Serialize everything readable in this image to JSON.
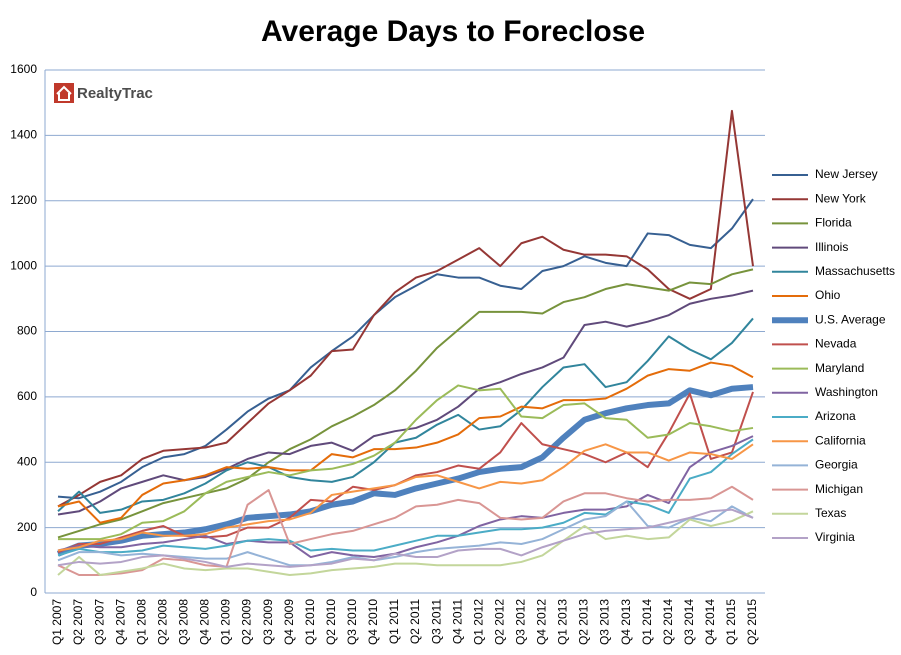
{
  "chart_data": {
    "type": "line",
    "title": "Average Days to Foreclose",
    "logo": "RealtyTrac",
    "categories": [
      "Q1 2007",
      "Q2 2007",
      "Q3 2007",
      "Q4 2007",
      "Q1 2008",
      "Q2 2008",
      "Q3 2008",
      "Q4 2008",
      "Q1 2009",
      "Q2 2009",
      "Q3 2009",
      "Q4 2009",
      "Q1 2010",
      "Q2 2010",
      "Q3 2010",
      "Q4 2010",
      "Q1 2011",
      "Q2 2011",
      "Q3 2011",
      "Q4 2011",
      "Q1 2012",
      "Q2 2012",
      "Q3 2012",
      "Q4 2012",
      "Q1 2013",
      "Q2 2013",
      "Q3 2013",
      "Q4 2013",
      "Q1 2014",
      "Q2 2014",
      "Q3 2014",
      "Q4 2014",
      "Q1 2015",
      "Q2 2015"
    ],
    "ylim": [
      0,
      1600
    ],
    "yticks": [
      0,
      200,
      400,
      600,
      800,
      1000,
      1200,
      1400,
      1600
    ],
    "grid": true,
    "legend": "right",
    "series": [
      {
        "name": "New Jersey",
        "color": "#376092",
        "values": [
          295,
          290,
          310,
          340,
          385,
          415,
          425,
          450,
          500,
          555,
          595,
          620,
          690,
          740,
          785,
          850,
          905,
          940,
          975,
          965,
          965,
          940,
          930,
          985,
          1000,
          1030,
          1010,
          1000,
          1100,
          1095,
          1065,
          1055,
          1115,
          1205
        ]
      },
      {
        "name": "New York",
        "color": "#953735",
        "values": [
          265,
          300,
          340,
          360,
          410,
          435,
          440,
          445,
          460,
          520,
          580,
          620,
          665,
          740,
          745,
          850,
          920,
          965,
          985,
          1020,
          1055,
          1000,
          1070,
          1090,
          1050,
          1035,
          1035,
          1030,
          990,
          930,
          900,
          930,
          1475,
          1000
        ]
      },
      {
        "name": "Florida",
        "color": "#77933c",
        "values": [
          170,
          190,
          210,
          225,
          250,
          275,
          290,
          305,
          320,
          350,
          400,
          440,
          470,
          510,
          540,
          575,
          620,
          680,
          750,
          805,
          860,
          860,
          860,
          855,
          890,
          905,
          930,
          945,
          935,
          925,
          950,
          945,
          975,
          990
        ]
      },
      {
        "name": "Illinois",
        "color": "#604a7b",
        "values": [
          240,
          250,
          280,
          320,
          340,
          360,
          345,
          355,
          380,
          410,
          430,
          425,
          450,
          460,
          435,
          480,
          495,
          505,
          530,
          570,
          625,
          645,
          670,
          690,
          720,
          820,
          830,
          815,
          830,
          850,
          885,
          900,
          910,
          925
        ]
      },
      {
        "name": "Massachusetts",
        "color": "#31859c",
        "values": [
          250,
          310,
          245,
          255,
          280,
          285,
          305,
          335,
          375,
          400,
          385,
          355,
          345,
          340,
          355,
          400,
          460,
          475,
          515,
          545,
          500,
          510,
          560,
          630,
          690,
          700,
          630,
          645,
          710,
          785,
          745,
          715,
          765,
          840
        ]
      },
      {
        "name": "Ohio",
        "color": "#e46c0a",
        "values": [
          265,
          280,
          215,
          230,
          300,
          335,
          345,
          360,
          385,
          380,
          385,
          375,
          375,
          425,
          415,
          440,
          440,
          445,
          460,
          485,
          535,
          540,
          570,
          565,
          590,
          590,
          595,
          625,
          665,
          685,
          680,
          705,
          695,
          660
        ]
      },
      {
        "name": "U.S. Average",
        "color": "#4f81bd",
        "line_width": 6,
        "values": [
          120,
          145,
          150,
          160,
          175,
          180,
          185,
          195,
          210,
          230,
          235,
          240,
          250,
          270,
          280,
          305,
          300,
          320,
          335,
          350,
          370,
          380,
          385,
          415,
          475,
          530,
          550,
          565,
          575,
          580,
          620,
          605,
          625,
          630
        ]
      },
      {
        "name": "Nevada",
        "color": "#c0504d",
        "values": [
          125,
          150,
          150,
          170,
          190,
          205,
          175,
          170,
          175,
          200,
          200,
          230,
          285,
          280,
          325,
          315,
          330,
          360,
          370,
          390,
          380,
          430,
          520,
          455,
          440,
          425,
          400,
          430,
          385,
          490,
          610,
          410,
          430,
          615
        ]
      },
      {
        "name": "Maryland",
        "color": "#9bbb59",
        "values": [
          165,
          165,
          165,
          180,
          215,
          220,
          250,
          305,
          340,
          355,
          370,
          360,
          375,
          380,
          395,
          420,
          460,
          530,
          590,
          635,
          620,
          625,
          540,
          535,
          575,
          580,
          535,
          530,
          475,
          485,
          520,
          510,
          495,
          505
        ]
      },
      {
        "name": "Washington",
        "color": "#8064a2",
        "values": [
          130,
          145,
          140,
          140,
          150,
          155,
          165,
          175,
          150,
          160,
          155,
          155,
          110,
          125,
          115,
          110,
          120,
          140,
          155,
          175,
          205,
          225,
          235,
          230,
          245,
          255,
          255,
          265,
          300,
          275,
          385,
          430,
          450,
          480
        ]
      },
      {
        "name": "Arizona",
        "color": "#4bacc6",
        "values": [
          115,
          135,
          125,
          125,
          130,
          145,
          140,
          135,
          145,
          160,
          165,
          160,
          130,
          135,
          130,
          130,
          145,
          160,
          175,
          175,
          185,
          195,
          195,
          200,
          215,
          245,
          240,
          280,
          270,
          245,
          350,
          370,
          425,
          470
        ]
      },
      {
        "name": "California",
        "color": "#f79646",
        "values": [
          130,
          140,
          160,
          165,
          185,
          175,
          175,
          180,
          200,
          210,
          220,
          225,
          245,
          300,
          310,
          320,
          330,
          355,
          360,
          340,
          320,
          340,
          335,
          345,
          385,
          435,
          455,
          430,
          430,
          405,
          430,
          425,
          410,
          455
        ]
      },
      {
        "name": "Georgia",
        "color": "#95b3d7",
        "values": [
          100,
          125,
          125,
          115,
          120,
          115,
          110,
          105,
          105,
          125,
          105,
          85,
          85,
          95,
          110,
          100,
          110,
          125,
          135,
          140,
          145,
          155,
          150,
          165,
          195,
          225,
          235,
          280,
          205,
          200,
          230,
          220,
          265,
          230
        ]
      },
      {
        "name": "Michigan",
        "color": "#d99694",
        "values": [
          85,
          55,
          55,
          60,
          70,
          105,
          100,
          85,
          80,
          270,
          315,
          150,
          165,
          180,
          190,
          210,
          230,
          265,
          270,
          285,
          275,
          230,
          225,
          230,
          280,
          305,
          305,
          290,
          280,
          285,
          285,
          290,
          325,
          285
        ]
      },
      {
        "name": "Texas",
        "color": "#c3d69b",
        "values": [
          55,
          110,
          55,
          65,
          75,
          90,
          75,
          70,
          75,
          75,
          65,
          55,
          60,
          70,
          75,
          80,
          90,
          90,
          85,
          85,
          85,
          85,
          95,
          115,
          160,
          205,
          165,
          175,
          165,
          170,
          225,
          205,
          220,
          250
        ]
      },
      {
        "name": "Virginia",
        "color": "#b3a2c7",
        "values": [
          85,
          95,
          90,
          95,
          110,
          115,
          105,
          95,
          80,
          90,
          85,
          80,
          85,
          90,
          105,
          100,
          120,
          110,
          110,
          130,
          135,
          135,
          115,
          140,
          160,
          180,
          190,
          195,
          200,
          215,
          230,
          250,
          255,
          230
        ]
      }
    ]
  }
}
